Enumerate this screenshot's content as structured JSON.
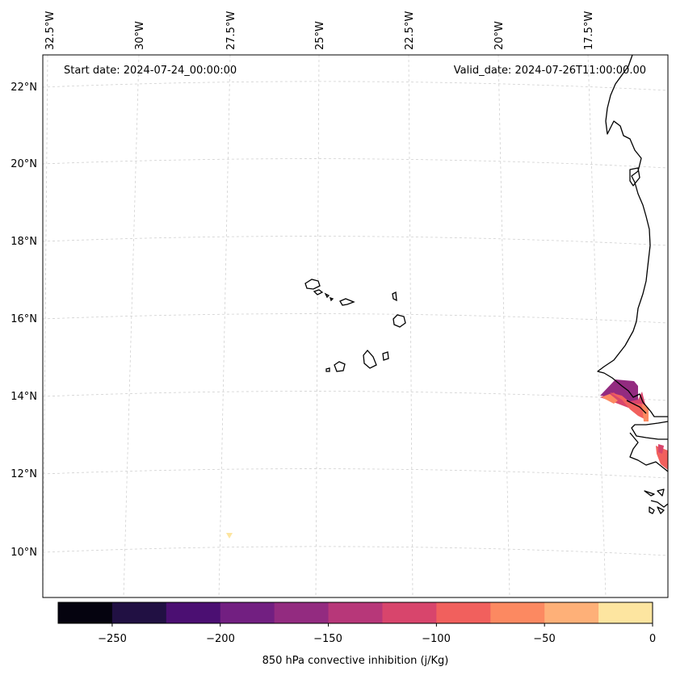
{
  "header": {
    "start_date": "Start date: 2024-07-24_00:00:00",
    "valid_date": "Valid_date: 2024-07-26T11:00:00.00"
  },
  "lon_labels": [
    "32.5°W",
    "30°W",
    "27.5°W",
    "25°W",
    "22.5°W",
    "20°W",
    "17.5°W"
  ],
  "lat_labels": [
    "22°N",
    "20°N",
    "18°N",
    "16°N",
    "14°N",
    "12°N",
    "10°N"
  ],
  "colorbar": {
    "label": "850 hPa convective inhibition (j/Kg)",
    "ticks": [
      "−250",
      "−200",
      "−150",
      "−100",
      "−50",
      "0"
    ],
    "range": [
      -275,
      0
    ],
    "colors": [
      "#05030f",
      "#211043",
      "#4b0f72",
      "#721f81",
      "#932b80",
      "#b73779",
      "#d8456c",
      "#f1605d",
      "#fc8961",
      "#feb078",
      "#fde5a0"
    ]
  }
}
